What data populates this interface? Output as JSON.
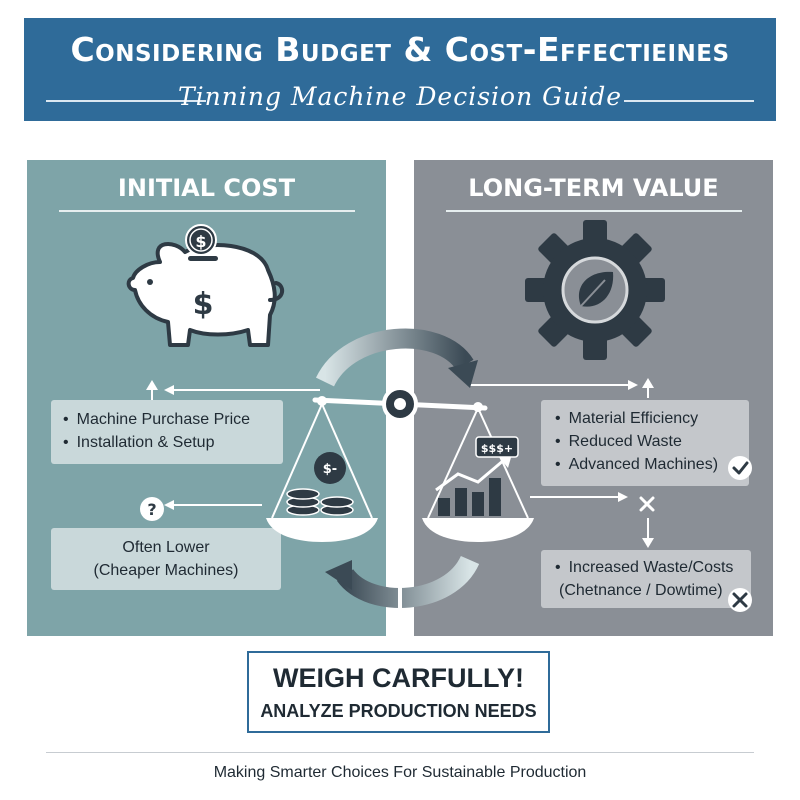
{
  "header": {
    "title": "Considering Budget & Cost-Effectieines",
    "subtitle": "Tinning Machine Decision Guide"
  },
  "left_panel": {
    "title": "INITIAL COST",
    "items": [
      "Machine Purchase Price",
      "Installation & Setup"
    ],
    "question_mark": "?",
    "note_line1": "Often Lower",
    "note_line2": "(Cheaper Machines)",
    "piggy_coin_symbol": "$",
    "piggy_symbol": "$",
    "pan_symbol": "$-"
  },
  "right_panel": {
    "title": "LONG-TERM VALUE",
    "items": [
      "Material Efficiency",
      "Reduced Waste",
      "Advanced Machines)"
    ],
    "risk_items_line1": "Increased Waste/Costs",
    "risk_items_line2": "(Chetnance / Dowtime)",
    "chart_tag": "$$$+"
  },
  "callout": {
    "main": "WEIGH CARFULLY!",
    "sub": "ANALYZE PRODUCTION NEEDS"
  },
  "footer": "Making Smarter Choices For Sustainable Production",
  "colors": {
    "banner": "#2f6b99",
    "left_panel": "#7ea4a8",
    "right_panel": "#8a8f96",
    "icon_dark": "#2e3a44"
  }
}
